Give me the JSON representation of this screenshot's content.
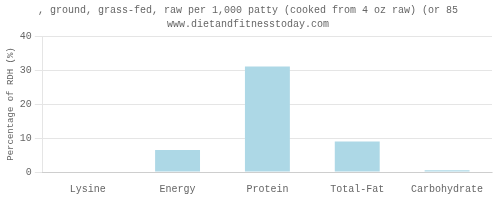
{
  "chart_data": {
    "type": "bar",
    "title": ", ground, grass-fed, raw per 1,000 patty (cooked from 4 oz raw) (or 85",
    "subtitle": "www.dietandfitnesstoday.com",
    "categories": [
      "Lysine",
      "Energy",
      "Protein",
      "Total-Fat",
      "Carbohydrate"
    ],
    "values": [
      0,
      6.5,
      31.0,
      9.0,
      0.5
    ],
    "color": "#add8e6",
    "ylabel": "Percentage of RDH (%)",
    "ylim": [
      0,
      40
    ],
    "yticks": [
      0,
      10,
      20,
      30,
      40
    ],
    "grid": true
  }
}
